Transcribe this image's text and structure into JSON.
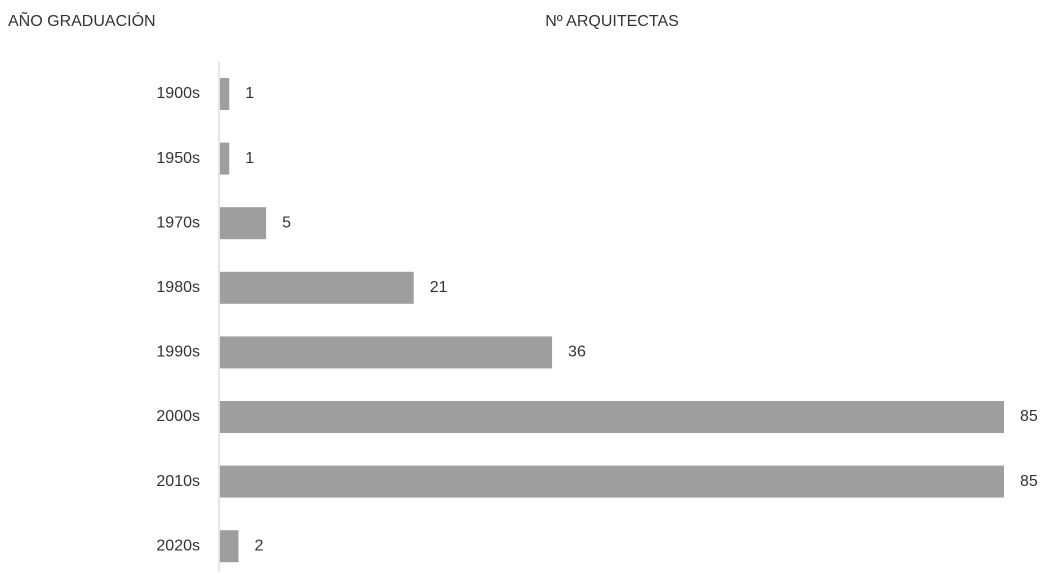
{
  "chart_data": {
    "type": "bar",
    "orientation": "horizontal",
    "y_axis_title": "AÑO GRADUACIÓN",
    "x_axis_title": "Nº ARQUITECTAS",
    "categories": [
      "1900s",
      "1950s",
      "1970s",
      "1980s",
      "1990s",
      "2000s",
      "2010s",
      "2020s"
    ],
    "values": [
      1,
      1,
      5,
      21,
      36,
      85,
      85,
      2
    ],
    "color": "#9e9e9e"
  }
}
